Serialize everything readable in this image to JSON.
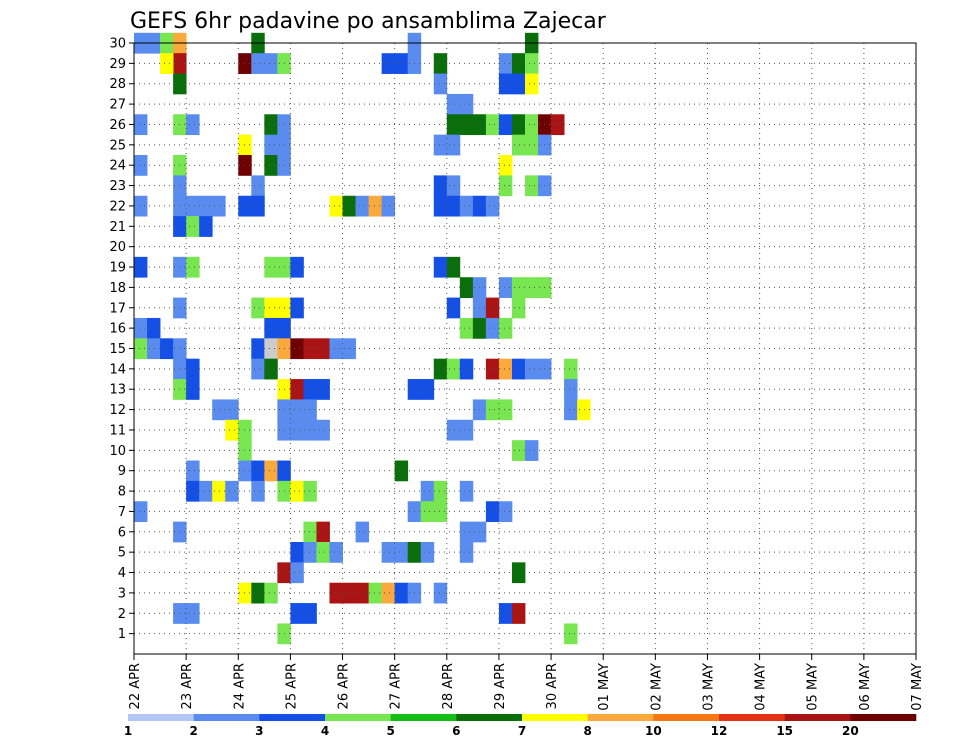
{
  "chart_data": {
    "type": "heatmap",
    "title": "GEFS 6hr padavine po ansamblima Zajecar",
    "xlabel": "",
    "ylabel": "",
    "x_ticks": [
      "22 APR",
      "23 APR",
      "24 APR",
      "25 APR",
      "26 APR",
      "27 APR",
      "28 APR",
      "29 APR",
      "30 APR",
      "01 MAY",
      "02 MAY",
      "03 MAY",
      "04 MAY",
      "05 MAY",
      "06 MAY",
      "07 MAY"
    ],
    "x_range_steps": [
      0,
      60
    ],
    "steps_per_day": 4,
    "y_range": [
      0,
      30
    ],
    "y_ticks": [
      1,
      2,
      3,
      4,
      5,
      6,
      7,
      8,
      9,
      10,
      11,
      12,
      13,
      14,
      15,
      16,
      17,
      18,
      19,
      20,
      21,
      22,
      23,
      24,
      25,
      26,
      27,
      28,
      29,
      30
    ],
    "grid": true,
    "legend": {
      "placement": "bottom",
      "levels": [
        "1",
        "2",
        "3",
        "4",
        "5",
        "6",
        "7",
        "8",
        "10",
        "12",
        "15",
        "20"
      ],
      "colors": [
        "#b4c8f5",
        "#5a8cf0",
        "#1450e6",
        "#78e650",
        "#14be14",
        "#0a6e0a",
        "#ffff00",
        "#faaa3c",
        "#f57814",
        "#e63214",
        "#aa1414",
        "#6e0000"
      ]
    },
    "cells": [
      [
        0,
        30,
        1
      ],
      [
        1,
        30,
        1
      ],
      [
        2,
        30,
        3
      ],
      [
        3,
        30,
        7
      ],
      [
        9,
        30,
        5
      ],
      [
        21,
        30,
        1
      ],
      [
        30,
        30,
        5
      ],
      [
        3,
        29,
        10
      ],
      [
        2,
        29,
        6
      ],
      [
        8,
        29,
        11
      ],
      [
        9,
        29,
        1
      ],
      [
        10,
        29,
        1
      ],
      [
        11,
        29,
        3
      ],
      [
        19,
        29,
        2
      ],
      [
        20,
        29,
        2
      ],
      [
        21,
        29,
        1
      ],
      [
        23,
        29,
        5
      ],
      [
        28,
        29,
        1
      ],
      [
        29,
        29,
        5
      ],
      [
        30,
        29,
        3
      ],
      [
        3,
        28,
        5
      ],
      [
        23,
        28,
        1
      ],
      [
        28,
        28,
        2
      ],
      [
        29,
        28,
        2
      ],
      [
        30,
        28,
        6
      ],
      [
        24,
        27,
        1
      ],
      [
        25,
        27,
        1
      ],
      [
        0,
        26,
        1
      ],
      [
        3,
        26,
        3
      ],
      [
        4,
        26,
        1
      ],
      [
        10,
        26,
        5
      ],
      [
        11,
        26,
        1
      ],
      [
        24,
        26,
        5
      ],
      [
        25,
        26,
        5
      ],
      [
        26,
        26,
        5
      ],
      [
        27,
        26,
        3
      ],
      [
        28,
        26,
        2
      ],
      [
        29,
        26,
        5
      ],
      [
        30,
        26,
        3
      ],
      [
        31,
        26,
        11
      ],
      [
        32,
        26,
        10
      ],
      [
        8,
        25,
        6
      ],
      [
        10,
        25,
        1
      ],
      [
        11,
        25,
        1
      ],
      [
        23,
        25,
        1
      ],
      [
        24,
        25,
        1
      ],
      [
        29,
        25,
        3
      ],
      [
        30,
        25,
        3
      ],
      [
        31,
        25,
        1
      ],
      [
        0,
        24,
        1
      ],
      [
        3,
        24,
        3
      ],
      [
        8,
        24,
        11
      ],
      [
        10,
        24,
        5
      ],
      [
        11,
        24,
        1
      ],
      [
        28,
        24,
        6
      ],
      [
        3,
        23,
        1
      ],
      [
        9,
        23,
        1
      ],
      [
        23,
        23,
        2
      ],
      [
        24,
        23,
        1
      ],
      [
        28,
        23,
        3
      ],
      [
        30,
        23,
        3
      ],
      [
        31,
        23,
        1
      ],
      [
        0,
        22,
        1
      ],
      [
        3,
        22,
        1
      ],
      [
        4,
        22,
        1
      ],
      [
        5,
        22,
        1
      ],
      [
        6,
        22,
        1
      ],
      [
        8,
        22,
        2
      ],
      [
        9,
        22,
        2
      ],
      [
        15,
        22,
        6
      ],
      [
        16,
        22,
        5
      ],
      [
        17,
        22,
        1
      ],
      [
        18,
        22,
        7
      ],
      [
        19,
        22,
        1
      ],
      [
        23,
        22,
        2
      ],
      [
        24,
        22,
        2
      ],
      [
        25,
        22,
        1
      ],
      [
        26,
        22,
        2
      ],
      [
        27,
        22,
        1
      ],
      [
        3,
        21,
        2
      ],
      [
        4,
        21,
        3
      ],
      [
        5,
        21,
        2
      ],
      [
        0,
        19,
        2
      ],
      [
        3,
        19,
        1
      ],
      [
        4,
        19,
        3
      ],
      [
        10,
        19,
        3
      ],
      [
        11,
        19,
        3
      ],
      [
        12,
        19,
        2
      ],
      [
        23,
        19,
        2
      ],
      [
        24,
        19,
        5
      ],
      [
        25,
        18,
        5
      ],
      [
        26,
        18,
        1
      ],
      [
        28,
        18,
        1
      ],
      [
        29,
        18,
        3
      ],
      [
        30,
        18,
        3
      ],
      [
        31,
        18,
        3
      ],
      [
        3,
        17,
        1
      ],
      [
        9,
        17,
        3
      ],
      [
        10,
        17,
        6
      ],
      [
        11,
        17,
        6
      ],
      [
        12,
        17,
        2
      ],
      [
        24,
        17,
        2
      ],
      [
        26,
        17,
        1
      ],
      [
        27,
        17,
        10
      ],
      [
        29,
        17,
        3
      ],
      [
        0,
        16,
        1
      ],
      [
        1,
        16,
        2
      ],
      [
        10,
        16,
        2
      ],
      [
        11,
        16,
        2
      ],
      [
        25,
        16,
        3
      ],
      [
        26,
        16,
        5
      ],
      [
        27,
        16,
        1
      ],
      [
        28,
        16,
        3
      ],
      [
        0,
        15,
        3
      ],
      [
        1,
        15,
        1
      ],
      [
        2,
        15,
        2
      ],
      [
        3,
        15,
        1
      ],
      [
        9,
        15,
        2
      ],
      [
        10,
        15,
        12
      ],
      [
        11,
        15,
        7
      ],
      [
        12,
        15,
        11
      ],
      [
        13,
        15,
        10
      ],
      [
        14,
        15,
        10
      ],
      [
        15,
        15,
        1
      ],
      [
        16,
        15,
        1
      ],
      [
        3,
        14,
        1
      ],
      [
        4,
        14,
        2
      ],
      [
        9,
        14,
        1
      ],
      [
        10,
        14,
        5
      ],
      [
        23,
        14,
        5
      ],
      [
        24,
        14,
        3
      ],
      [
        25,
        14,
        2
      ],
      [
        27,
        14,
        10
      ],
      [
        28,
        14,
        7
      ],
      [
        29,
        14,
        2
      ],
      [
        30,
        14,
        1
      ],
      [
        31,
        14,
        1
      ],
      [
        33,
        14,
        3
      ],
      [
        3,
        13,
        3
      ],
      [
        4,
        13,
        2
      ],
      [
        11,
        13,
        6
      ],
      [
        12,
        13,
        10
      ],
      [
        13,
        13,
        2
      ],
      [
        14,
        13,
        2
      ],
      [
        21,
        13,
        2
      ],
      [
        22,
        13,
        2
      ],
      [
        33,
        13,
        1
      ],
      [
        6,
        12,
        1
      ],
      [
        7,
        12,
        1
      ],
      [
        11,
        12,
        1
      ],
      [
        12,
        12,
        1
      ],
      [
        13,
        12,
        1
      ],
      [
        26,
        12,
        1
      ],
      [
        27,
        12,
        3
      ],
      [
        28,
        12,
        3
      ],
      [
        33,
        12,
        1
      ],
      [
        34,
        12,
        6
      ],
      [
        7,
        11,
        6
      ],
      [
        8,
        11,
        3
      ],
      [
        11,
        11,
        1
      ],
      [
        12,
        11,
        1
      ],
      [
        13,
        11,
        1
      ],
      [
        14,
        11,
        1
      ],
      [
        24,
        11,
        1
      ],
      [
        25,
        11,
        1
      ],
      [
        8,
        10,
        3
      ],
      [
        29,
        10,
        3
      ],
      [
        30,
        10,
        1
      ],
      [
        4,
        9,
        1
      ],
      [
        8,
        9,
        1
      ],
      [
        9,
        9,
        2
      ],
      [
        10,
        9,
        7
      ],
      [
        11,
        9,
        2
      ],
      [
        20,
        9,
        5
      ],
      [
        4,
        8,
        2
      ],
      [
        5,
        8,
        1
      ],
      [
        6,
        8,
        6
      ],
      [
        7,
        8,
        1
      ],
      [
        9,
        8,
        1
      ],
      [
        11,
        8,
        3
      ],
      [
        12,
        8,
        6
      ],
      [
        13,
        8,
        3
      ],
      [
        22,
        8,
        1
      ],
      [
        23,
        8,
        3
      ],
      [
        25,
        8,
        1
      ],
      [
        0,
        7,
        1
      ],
      [
        21,
        7,
        1
      ],
      [
        22,
        7,
        3
      ],
      [
        23,
        7,
        3
      ],
      [
        27,
        7,
        2
      ],
      [
        28,
        7,
        1
      ],
      [
        3,
        6,
        1
      ],
      [
        13,
        6,
        3
      ],
      [
        14,
        6,
        10
      ],
      [
        17,
        6,
        1
      ],
      [
        25,
        6,
        1
      ],
      [
        26,
        6,
        1
      ],
      [
        12,
        5,
        2
      ],
      [
        13,
        5,
        1
      ],
      [
        14,
        5,
        3
      ],
      [
        15,
        5,
        1
      ],
      [
        19,
        5,
        1
      ],
      [
        20,
        5,
        1
      ],
      [
        21,
        5,
        5
      ],
      [
        22,
        5,
        1
      ],
      [
        25,
        5,
        1
      ],
      [
        11,
        4,
        10
      ],
      [
        12,
        4,
        1
      ],
      [
        29,
        4,
        5
      ],
      [
        8,
        3,
        6
      ],
      [
        9,
        3,
        5
      ],
      [
        10,
        3,
        3
      ],
      [
        15,
        3,
        10
      ],
      [
        16,
        3,
        10
      ],
      [
        17,
        3,
        10
      ],
      [
        18,
        3,
        3
      ],
      [
        19,
        3,
        7
      ],
      [
        20,
        3,
        2
      ],
      [
        21,
        3,
        1
      ],
      [
        23,
        3,
        1
      ],
      [
        3,
        2,
        1
      ],
      [
        4,
        2,
        1
      ],
      [
        12,
        2,
        2
      ],
      [
        13,
        2,
        2
      ],
      [
        28,
        2,
        2
      ],
      [
        29,
        2,
        10
      ],
      [
        11,
        1,
        3
      ],
      [
        33,
        1,
        3
      ]
    ]
  }
}
